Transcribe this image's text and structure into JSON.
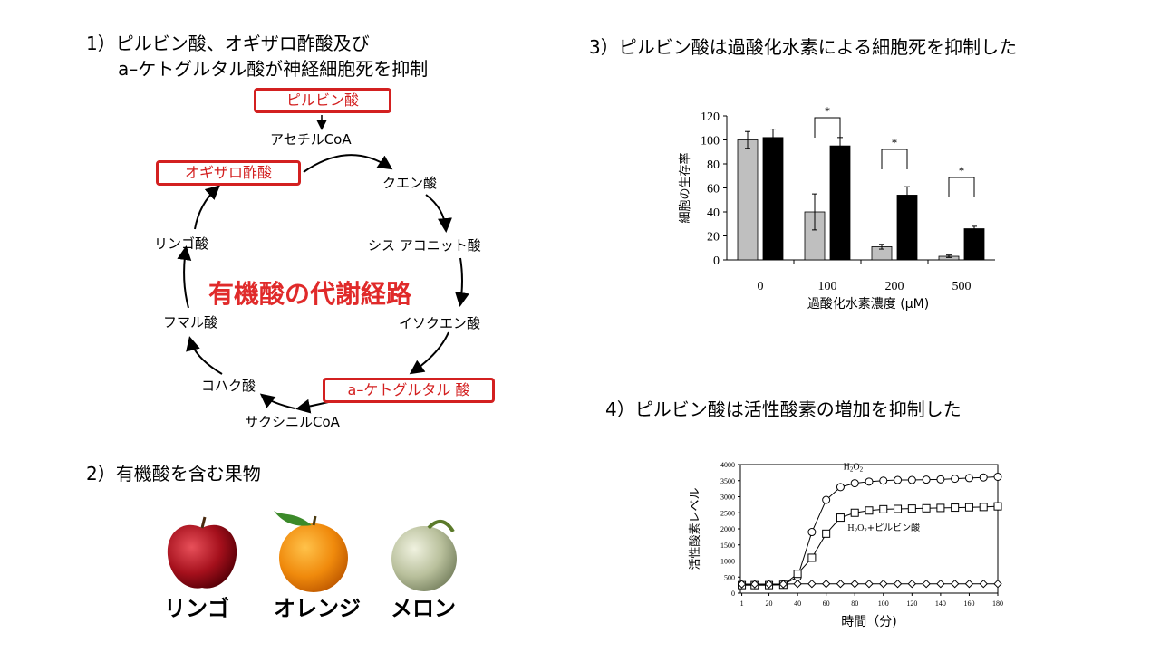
{
  "section1": {
    "title_line1": "1）ピルビン酸、オギザロ酢酸及び",
    "title_line2": "a–ケトグルタル酸が神経細胞死を抑制",
    "center_title": "有機酸の代謝経路",
    "pathway": {
      "pyruvate": "ピルビン酸",
      "acetyl_coa": "アセチルCoA",
      "citrate": "クエン酸",
      "cis_aconitate": "シス アコニット酸",
      "isocitrate": "イソクエン酸",
      "a_ketoglutarate": "a–ケトグルタル 酸",
      "succinyl_coa": "サクシニルCoA",
      "succinate": "コハク酸",
      "fumarate": "フマル酸",
      "malate": "リンゴ酸",
      "oxaloacetate": "オギザロ酢酸"
    }
  },
  "section2": {
    "title": "2）有機酸を含む果物",
    "fruits": [
      "リンゴ",
      "オレンジ",
      "メロン"
    ]
  },
  "colors": {
    "highlight": "#d32020",
    "gray_bar": "#bfbfbf",
    "black_bar": "#000000"
  },
  "chart_data": [
    {
      "type": "bar",
      "title": "3）ピルビン酸は過酸化水素による細胞死を抑制した",
      "xlabel": "過酸化水素濃度 (μM)",
      "ylabel": "細胞の生存率",
      "categories": [
        "0",
        "100",
        "200",
        "500"
      ],
      "series": [
        {
          "values": [
            100,
            40,
            11,
            3
          ],
          "errors": [
            7,
            15,
            2,
            1
          ],
          "color": "#bfbfbf"
        },
        {
          "values": [
            102,
            95,
            54,
            26
          ],
          "errors": [
            7,
            7,
            7,
            2
          ],
          "color": "#000000"
        }
      ],
      "ylim": [
        0,
        120
      ],
      "yticks": [
        "0",
        "20",
        "40",
        "60",
        "80",
        "100",
        "120"
      ],
      "significance": [
        "*",
        "*",
        "*"
      ]
    },
    {
      "type": "line",
      "title": "4）ピルビン酸は活性酸素の増加を抑制した",
      "xlabel": "時間（分)",
      "ylabel": "活性酸素レベル",
      "xlim": [
        0,
        180
      ],
      "ylim": [
        0,
        4000
      ],
      "xticks": [
        "1",
        "20",
        "40",
        "60",
        "80",
        "100",
        "120",
        "140",
        "160",
        "180"
      ],
      "yticks": [
        "0",
        "500",
        "1000",
        "1500",
        "2000",
        "2500",
        "3000",
        "3500",
        "4000"
      ],
      "series": [
        {
          "name": "H2O2",
          "marker": "circle",
          "x": [
            1,
            10,
            20,
            30,
            40,
            50,
            60,
            70,
            80,
            90,
            100,
            110,
            120,
            130,
            140,
            150,
            160,
            170,
            180
          ],
          "y": [
            250,
            250,
            250,
            270,
            500,
            1900,
            2900,
            3300,
            3420,
            3470,
            3500,
            3520,
            3520,
            3530,
            3540,
            3560,
            3580,
            3600,
            3620
          ]
        },
        {
          "name": "H2O2+ピルビン酸",
          "marker": "square",
          "x": [
            1,
            10,
            20,
            30,
            40,
            50,
            60,
            70,
            80,
            90,
            100,
            110,
            120,
            130,
            140,
            150,
            160,
            170,
            180
          ],
          "y": [
            250,
            250,
            250,
            260,
            600,
            1100,
            1850,
            2350,
            2500,
            2570,
            2610,
            2620,
            2630,
            2640,
            2650,
            2660,
            2670,
            2680,
            2700
          ]
        },
        {
          "marker": "diamond",
          "x": [
            1,
            10,
            20,
            30,
            40,
            50,
            60,
            70,
            80,
            90,
            100,
            110,
            120,
            130,
            140,
            150,
            160,
            170,
            180
          ],
          "y": [
            280,
            280,
            280,
            280,
            290,
            290,
            290,
            290,
            290,
            290,
            290,
            290,
            290,
            290,
            290,
            290,
            290,
            290,
            290
          ]
        }
      ],
      "labels": {
        "h2o2": "H",
        "sub": "2",
        "o": "O",
        "plus_pyruvate": "+ピルビン酸"
      }
    }
  ]
}
